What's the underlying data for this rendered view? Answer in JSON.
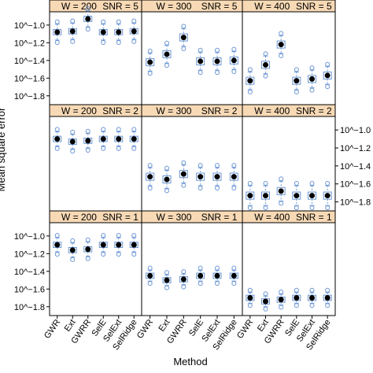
{
  "chart_data": {
    "type": "box",
    "layout": "trellis 3x3",
    "xlabel": "Method",
    "ylabel": "Mean square error",
    "y_scale": "log10",
    "categories": [
      "GWR",
      "Ext",
      "GWRR",
      "SelE",
      "SelExt",
      "SelRidge"
    ],
    "y_ticks": [
      {
        "value": -1.0,
        "label": "10^−1.0"
      },
      {
        "value": -1.2,
        "label": "10^−1.2"
      },
      {
        "value": -1.4,
        "label": "10^−1.4"
      },
      {
        "value": -1.6,
        "label": "10^−1.6"
      },
      {
        "value": -1.8,
        "label": "10^−1.8"
      }
    ],
    "ylim": [
      -1.9,
      -0.85
    ],
    "panels": [
      {
        "w_label": "W = 200",
        "snr_label": "SNR = 5",
        "row": 0,
        "col": 0,
        "medians": [
          -1.08,
          -1.07,
          -0.93,
          -1.08,
          -1.08,
          -1.07
        ],
        "q_spread": 0.03,
        "w_spread": 0.09
      },
      {
        "w_label": "W = 300",
        "snr_label": "SNR = 5",
        "row": 0,
        "col": 1,
        "medians": [
          -1.42,
          -1.33,
          -1.14,
          -1.41,
          -1.41,
          -1.4
        ],
        "q_spread": 0.04,
        "w_spread": 0.1
      },
      {
        "w_label": "W = 400",
        "snr_label": "SNR = 5",
        "row": 0,
        "col": 2,
        "medians": [
          -1.63,
          -1.45,
          -1.22,
          -1.63,
          -1.61,
          -1.57
        ],
        "q_spread": 0.04,
        "w_spread": 0.1
      },
      {
        "w_label": "W = 200",
        "snr_label": "SNR = 2",
        "row": 1,
        "col": 0,
        "medians": [
          -1.1,
          -1.13,
          -1.12,
          -1.1,
          -1.1,
          -1.1
        ],
        "q_spread": 0.03,
        "w_spread": 0.08
      },
      {
        "w_label": "W = 300",
        "snr_label": "SNR = 2",
        "row": 1,
        "col": 1,
        "medians": [
          -1.52,
          -1.55,
          -1.49,
          -1.52,
          -1.52,
          -1.52
        ],
        "q_spread": 0.04,
        "w_spread": 0.1
      },
      {
        "w_label": "W = 400",
        "snr_label": "SNR = 2",
        "row": 1,
        "col": 2,
        "medians": [
          -1.73,
          -1.73,
          -1.68,
          -1.73,
          -1.73,
          -1.73
        ],
        "q_spread": 0.04,
        "w_spread": 0.11
      },
      {
        "w_label": "W = 200",
        "snr_label": "SNR = 1",
        "row": 2,
        "col": 0,
        "medians": [
          -1.1,
          -1.16,
          -1.15,
          -1.1,
          -1.1,
          -1.1
        ],
        "q_spread": 0.03,
        "w_spread": 0.08
      },
      {
        "w_label": "W = 300",
        "snr_label": "SNR = 1",
        "row": 2,
        "col": 1,
        "medians": [
          -1.45,
          -1.5,
          -1.49,
          -1.45,
          -1.45,
          -1.45
        ],
        "q_spread": 0.03,
        "w_spread": 0.06
      },
      {
        "w_label": "W = 400",
        "snr_label": "SNR = 1",
        "row": 2,
        "col": 2,
        "medians": [
          -1.7,
          -1.74,
          -1.72,
          -1.7,
          -1.7,
          -1.7
        ],
        "q_spread": 0.03,
        "w_spread": 0.06
      }
    ],
    "colors": {
      "strip_bg": "#f7d9b5",
      "box": "#6a96d3",
      "median_dot": "#000000",
      "frame": "#000000"
    }
  }
}
